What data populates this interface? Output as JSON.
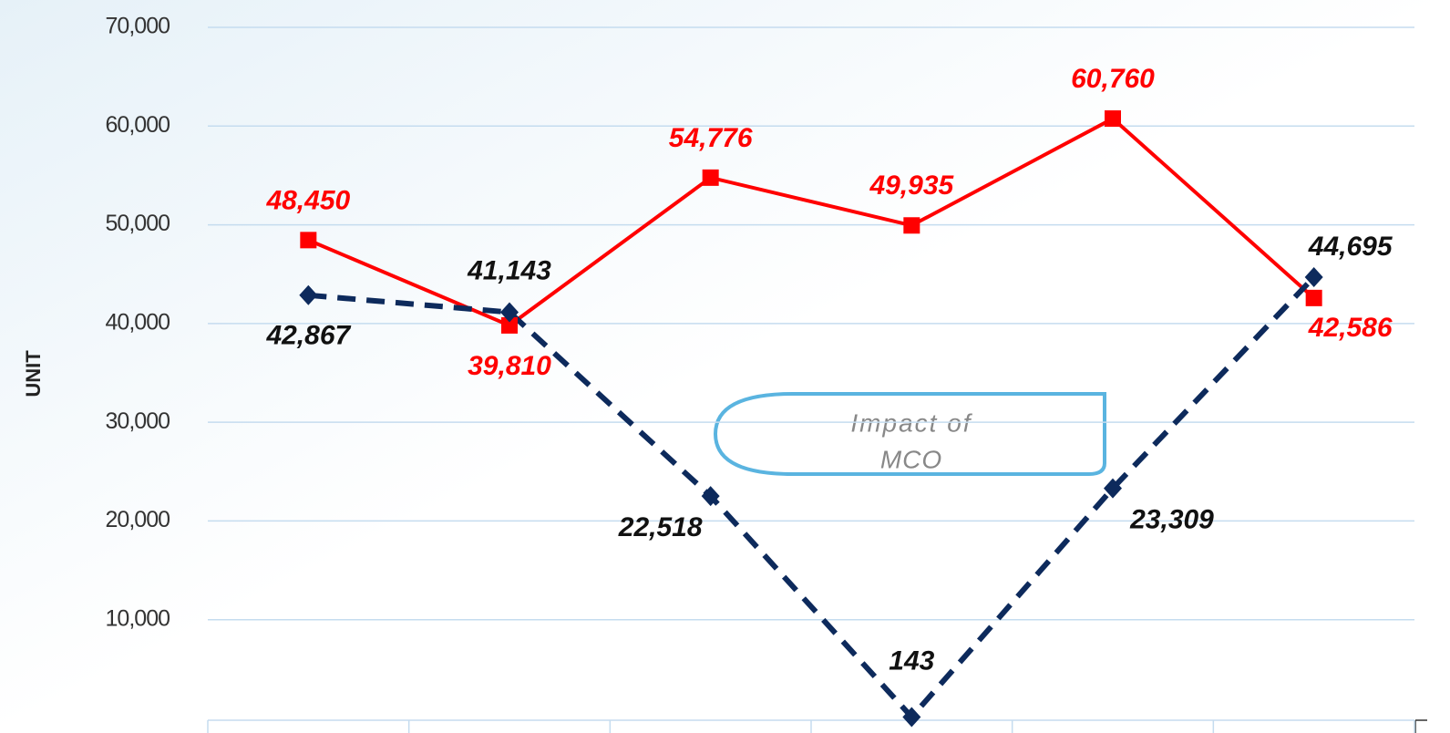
{
  "chart_data": {
    "type": "line",
    "y_label": "UNIT",
    "annotation": [
      "Impact of",
      "MCO"
    ],
    "categories": [
      null,
      null,
      null,
      null,
      null,
      null
    ],
    "series": [
      {
        "color": "#ff0000",
        "marker": "square",
        "dash": false,
        "values": [
          48450,
          39810,
          54776,
          49935,
          60760,
          42586
        ],
        "value_labels": [
          "48,450",
          "39,810",
          "54,776",
          "49,935",
          "60,760",
          "42,586"
        ]
      },
      {
        "color": "#0d2a5c",
        "marker": "diamond",
        "dash": true,
        "values": [
          42867,
          41143,
          22518,
          143,
          23309,
          44695
        ],
        "value_labels": [
          "42,867",
          "41,143",
          "22,518",
          "143",
          "23,309",
          "44,695"
        ]
      }
    ],
    "ylim": [
      0,
      70000
    ],
    "yticks": [
      {
        "value": 10000,
        "label": "10,000"
      },
      {
        "value": 20000,
        "label": "20,000"
      },
      {
        "value": 30000,
        "label": "30,000"
      },
      {
        "value": 40000,
        "label": "40,000"
      },
      {
        "value": 50000,
        "label": "50,000"
      },
      {
        "value": 60000,
        "label": "60,000"
      },
      {
        "value": 70000,
        "label": "70,000"
      }
    ],
    "grid": true
  }
}
